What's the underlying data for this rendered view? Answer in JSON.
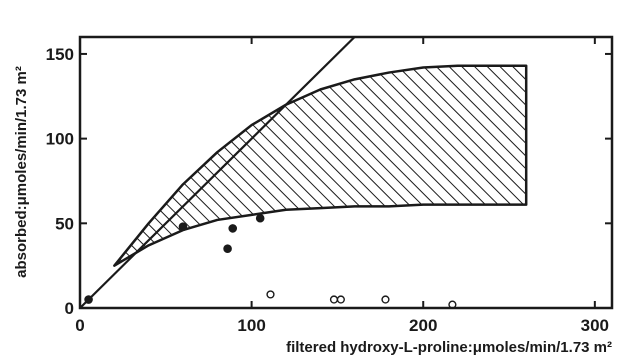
{
  "chart_data": {
    "type": "scatter",
    "xlabel": "filtered hydroxy-L-proline:μmoles/min/1.73 m²",
    "ylabel": "absorbed:μmoles/min/1.73 m²",
    "xlim": [
      0,
      310
    ],
    "ylim": [
      0,
      160
    ],
    "x_ticks": [
      0,
      100,
      200,
      300
    ],
    "y_ticks": [
      0,
      50,
      100,
      150
    ],
    "x_tick_labels": [
      "0",
      "100",
      "200",
      "300"
    ],
    "y_tick_labels": [
      "0",
      "50",
      "100",
      "150"
    ],
    "grid": false,
    "identity_line": {
      "x": [
        0,
        160
      ],
      "y": [
        0,
        160
      ]
    },
    "shaded_region": {
      "pattern": "diagonal-hatch",
      "upper": {
        "x": [
          20,
          40,
          60,
          80,
          100,
          120,
          140,
          160,
          180,
          200,
          220,
          240,
          260
        ],
        "y": [
          25,
          50,
          73,
          92,
          108,
          120,
          129,
          135,
          139,
          142,
          143,
          143,
          143
        ]
      },
      "lower": {
        "x": [
          20,
          40,
          60,
          80,
          100,
          120,
          140,
          160,
          180,
          200,
          220,
          240,
          260
        ],
        "y": [
          25,
          37,
          46,
          52,
          55,
          58,
          59,
          60,
          60,
          61,
          61,
          61,
          61
        ]
      }
    },
    "series": [
      {
        "marker": "filled-circle",
        "x": [
          5,
          60,
          86,
          89,
          105
        ],
        "y": [
          5,
          48,
          35,
          47,
          53
        ]
      },
      {
        "marker": "open-circle",
        "x": [
          111,
          148,
          152,
          178,
          217
        ],
        "y": [
          8,
          5,
          5,
          5,
          2
        ]
      }
    ]
  }
}
